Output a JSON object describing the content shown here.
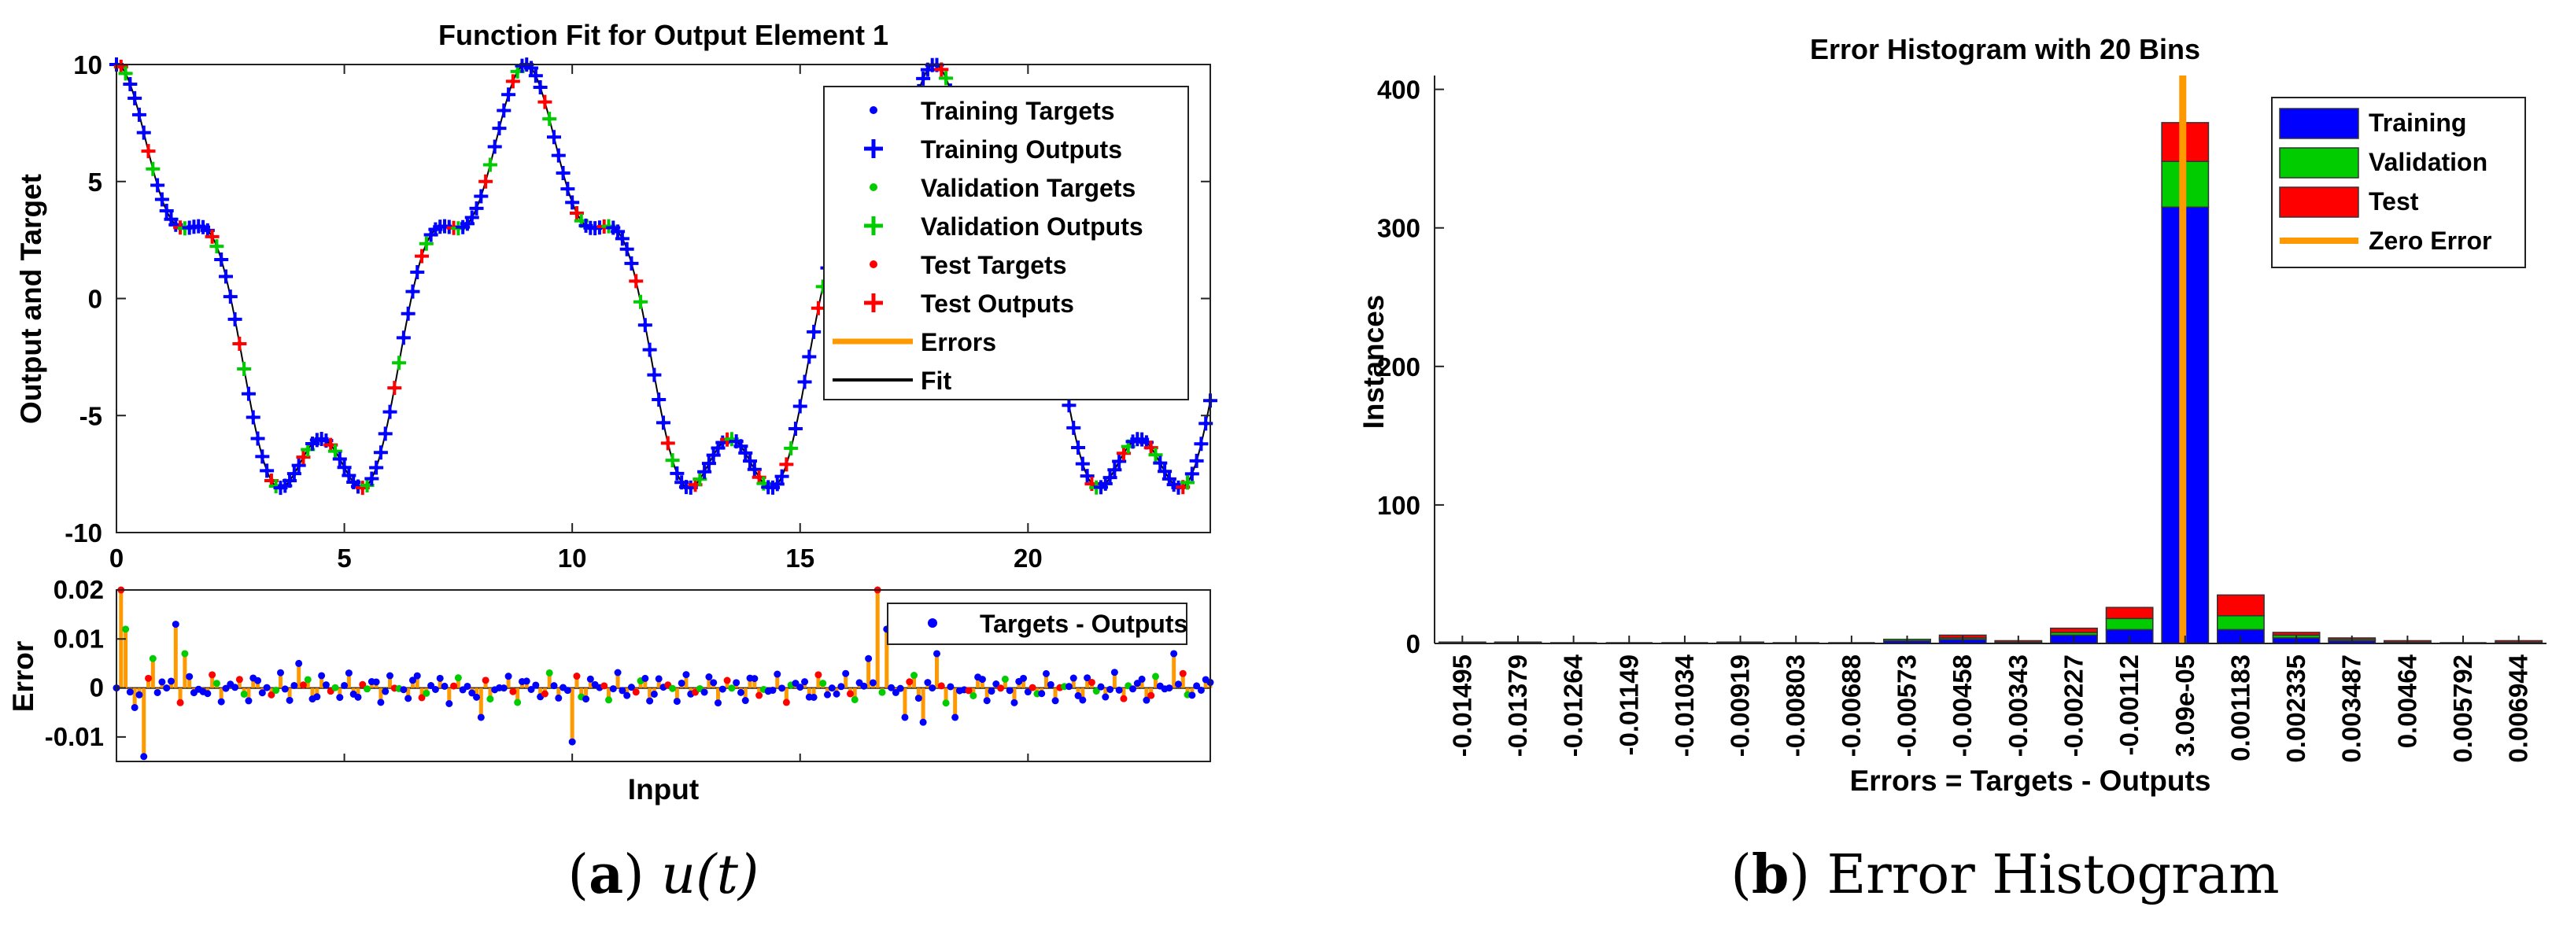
{
  "captions": {
    "a_letter": "a",
    "a_text": "u(t)",
    "b_letter": "b",
    "b_text": "Error Histogram"
  },
  "colors": {
    "training": "#0000ff",
    "validation": "#00cc00",
    "test": "#ff0000",
    "errors": "#ff9900",
    "fit": "#000000"
  },
  "chart_data": [
    {
      "type": "scatter",
      "title": "Function Fit for Output Element 1",
      "xlabel": "",
      "ylabel": "Output and Target",
      "xlim": [
        0,
        24
      ],
      "ylim": [
        -10,
        10
      ],
      "xticks": [
        0,
        5,
        10,
        15,
        20
      ],
      "yticks": [
        10,
        5,
        0,
        -5,
        -10
      ],
      "legend": [
        "Training Targets",
        "Training Outputs",
        "Validation Targets",
        "Validation Outputs",
        "Test Targets",
        "Test Outputs",
        "Errors",
        "Fit"
      ],
      "legend_location": "top-right",
      "function": "8*cos(0.7*x) + 2*cos(2.8*x)",
      "x_range": [
        0,
        24
      ],
      "sample_step": 0.1
    },
    {
      "type": "line",
      "title": "",
      "xlabel": "Input",
      "ylabel": "Error",
      "xlim": [
        0,
        24
      ],
      "ylim": [
        -0.015,
        0.02
      ],
      "yticks": [
        0.02,
        0.01,
        0,
        -0.01
      ],
      "ytick_labels": [
        "0.02",
        "0.01",
        "0",
        "-0.01"
      ],
      "legend": [
        "Targets - Outputs"
      ],
      "legend_location": "top-right",
      "spikes": [
        {
          "x": 0.1,
          "y": 0.02
        },
        {
          "x": 0.2,
          "y": 0.012
        },
        {
          "x": 0.4,
          "y": -0.004
        },
        {
          "x": 0.6,
          "y": -0.014
        },
        {
          "x": 0.8,
          "y": 0.006
        },
        {
          "x": 1.3,
          "y": 0.013
        },
        {
          "x": 1.5,
          "y": 0.007
        },
        {
          "x": 4.0,
          "y": 0.005
        },
        {
          "x": 8.0,
          "y": -0.006
        },
        {
          "x": 10.0,
          "y": -0.011
        },
        {
          "x": 16.5,
          "y": 0.006
        },
        {
          "x": 16.7,
          "y": 0.02
        },
        {
          "x": 16.9,
          "y": 0.012
        },
        {
          "x": 17.3,
          "y": -0.006
        },
        {
          "x": 17.7,
          "y": -0.007
        },
        {
          "x": 18.0,
          "y": 0.007
        },
        {
          "x": 18.4,
          "y": -0.006
        },
        {
          "x": 23.2,
          "y": 0.007
        }
      ]
    },
    {
      "type": "bar",
      "title": "Error Histogram with 20 Bins",
      "xlabel": "Errors = Targets - Outputs",
      "ylabel": "Instances",
      "ylim": [
        0,
        410
      ],
      "yticks": [
        0,
        100,
        200,
        300,
        400
      ],
      "categories": [
        "-0.01495",
        "-0.01379",
        "-0.01264",
        "-0.01149",
        "-0.01034",
        "-0.00919",
        "-0.00803",
        "-0.00688",
        "-0.00573",
        "-0.00458",
        "-0.00343",
        "-0.00227",
        "-0.00112",
        "3.09e-05",
        "0.001183",
        "0.002335",
        "0.003487",
        "0.00464",
        "0.005792",
        "0.006944"
      ],
      "series": [
        {
          "name": "Training",
          "values": [
            1,
            1,
            0,
            0,
            0,
            1,
            0,
            0,
            2,
            3,
            1,
            6,
            10,
            315,
            10,
            4,
            2,
            1,
            0,
            1
          ]
        },
        {
          "name": "Validation",
          "values": [
            0,
            0,
            0,
            0,
            0,
            0,
            0,
            0,
            1,
            1,
            0,
            2,
            8,
            33,
            10,
            2,
            1,
            0,
            0,
            0
          ]
        },
        {
          "name": "Test",
          "values": [
            0,
            0,
            0,
            0,
            0,
            0,
            0,
            0,
            0,
            2,
            1,
            3,
            8,
            28,
            15,
            2,
            1,
            1,
            0,
            1
          ]
        }
      ],
      "zero_error_line": {
        "name": "Zero Error",
        "category": "3.09e-05"
      },
      "legend_location": "top-right"
    }
  ]
}
